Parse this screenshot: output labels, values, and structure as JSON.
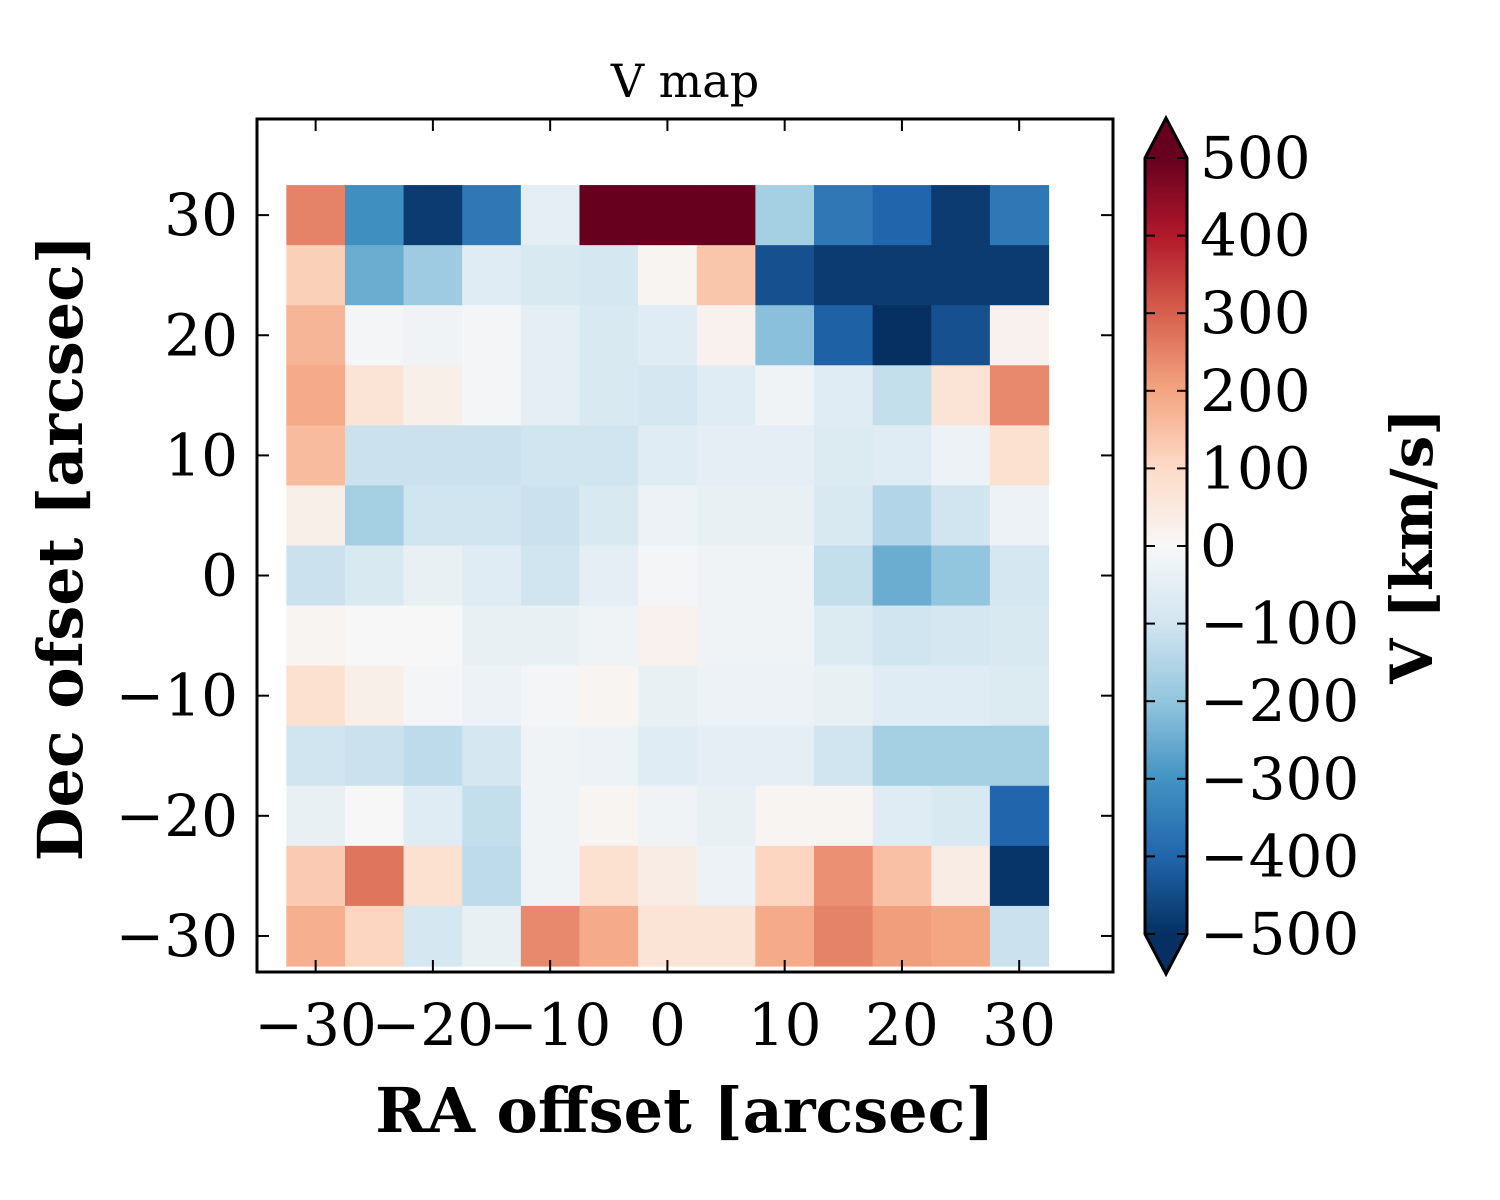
{
  "chart_data": {
    "type": "heatmap",
    "title": "V map",
    "xlabel": "RA offset [arcsec]",
    "ylabel": "Dec ofset [arcsec]",
    "colorbar_label": "V [km/s]",
    "colormap": "RdBu_r",
    "colormap_stops": [
      "#053061",
      "#2166ac",
      "#4393c3",
      "#92c5de",
      "#d1e5f0",
      "#f7f7f7",
      "#fddbc7",
      "#f4a582",
      "#d6604d",
      "#b2182b",
      "#67001f"
    ],
    "vlim": [
      -500,
      500
    ],
    "xlim": [
      -35,
      38
    ],
    "ylim": [
      -33,
      38
    ],
    "cell_size": 5,
    "x_centers": [
      -30,
      -25,
      -20,
      -15,
      -10,
      -5,
      0,
      5,
      10,
      15,
      20,
      25,
      30
    ],
    "y_centers": [
      30,
      25,
      20,
      15,
      10,
      5,
      0,
      -5,
      -10,
      -15,
      -20,
      -25,
      -30
    ],
    "xticks": [
      -30,
      -20,
      -10,
      0,
      10,
      20,
      30
    ],
    "xtick_labels": [
      "−30",
      "−20",
      "−10",
      "0",
      "10",
      "20",
      "30"
    ],
    "yticks": [
      30,
      20,
      10,
      0,
      -10,
      -20,
      -30
    ],
    "ytick_labels": [
      "30",
      "20",
      "10",
      "0",
      "−10",
      "−20",
      "−30"
    ],
    "cbar_ticks": [
      500,
      400,
      300,
      200,
      100,
      0,
      -100,
      -200,
      -300,
      -400,
      -500
    ],
    "cbar_tick_labels": [
      "500",
      "400",
      "300",
      "200",
      "100",
      "0",
      "−100",
      "−200",
      "−300",
      "−400",
      "−500"
    ],
    "colorbar_extend": "both",
    "values": [
      [
        250,
        -310,
        -480,
        -360,
        -50,
        500,
        500,
        500,
        -170,
        -360,
        -400,
        -480,
        -360
      ],
      [
        120,
        -250,
        -180,
        -60,
        -80,
        -90,
        10,
        140,
        -440,
        -480,
        -480,
        -480,
        -480
      ],
      [
        170,
        -10,
        -20,
        -10,
        -50,
        -80,
        -60,
        20,
        -210,
        -410,
        -500,
        -440,
        20
      ],
      [
        190,
        70,
        30,
        -10,
        -50,
        -80,
        -90,
        -60,
        -20,
        -60,
        -120,
        70,
        240
      ],
      [
        160,
        -110,
        -110,
        -110,
        -100,
        -100,
        -60,
        -50,
        -50,
        -70,
        -60,
        -30,
        80
      ],
      [
        30,
        -170,
        -100,
        -100,
        -110,
        -80,
        -30,
        -40,
        -40,
        -80,
        -150,
        -100,
        -30
      ],
      [
        -110,
        -80,
        -40,
        -60,
        -100,
        -50,
        -10,
        -20,
        -20,
        -120,
        -250,
        -200,
        -90
      ],
      [
        10,
        0,
        0,
        -40,
        -40,
        -20,
        20,
        -20,
        -20,
        -70,
        -100,
        -90,
        -80
      ],
      [
        80,
        30,
        -10,
        -30,
        -10,
        10,
        -40,
        -30,
        -30,
        -40,
        -60,
        -60,
        -70
      ],
      [
        -100,
        -110,
        -130,
        -90,
        -20,
        -30,
        -60,
        -50,
        -50,
        -100,
        -170,
        -170,
        -170
      ],
      [
        -40,
        0,
        -60,
        -120,
        -20,
        10,
        -20,
        -40,
        10,
        10,
        -60,
        -80,
        -400
      ],
      [
        130,
        270,
        80,
        -130,
        -20,
        80,
        40,
        -30,
        110,
        230,
        150,
        40,
        -490
      ],
      [
        180,
        110,
        -90,
        -40,
        240,
        190,
        70,
        70,
        190,
        250,
        210,
        200,
        -110
      ]
    ]
  }
}
